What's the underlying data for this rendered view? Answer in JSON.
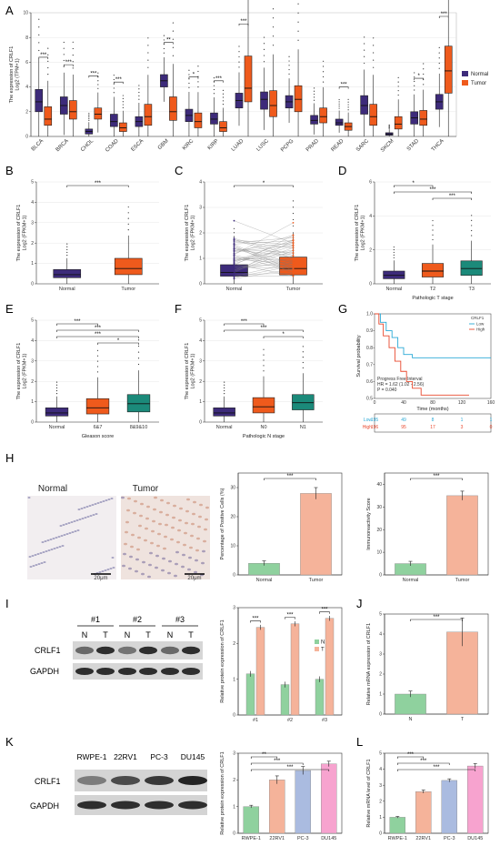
{
  "panels": {
    "A": "A",
    "B": "B",
    "C": "C",
    "D": "D",
    "E": "E",
    "F": "F",
    "G": "G",
    "H": "H",
    "I": "I",
    "J": "J",
    "K": "K",
    "L": "L"
  },
  "colors": {
    "normal": "#3d2b7a",
    "tumor": "#ef5a1c",
    "t3": "#1b8a7a",
    "green": "#8fd19e",
    "salmon": "#f5b39a",
    "blue": "#aabbe0",
    "pink": "#f7a3cf"
  },
  "chart_data": [
    {
      "panel": "A",
      "type": "box",
      "ylabel": "The expression of CRLF1",
      "ylabel2": "Log2 (TPM+1)",
      "ylim": [
        0,
        10
      ],
      "yticks": [
        "0",
        "2",
        "4",
        "6",
        "8",
        "10"
      ],
      "categories": [
        "BLCA",
        "BRCA",
        "CHOL",
        "COAD",
        "ESCA",
        "GBM",
        "KIRC",
        "KIRP",
        "LUAD",
        "LUSC",
        "PCPG",
        "PRAD",
        "READ",
        "SARC",
        "SKCM",
        "STAD",
        "THCA"
      ],
      "significance": [
        "***",
        "***",
        "***",
        "***",
        "",
        "**",
        "*",
        "***",
        "***",
        "",
        "",
        "",
        "***",
        "",
        "",
        "*",
        "***"
      ],
      "legend": [
        "Normal",
        "Tumor"
      ],
      "series": [
        {
          "name": "Normal",
          "box": [
            [
              2,
              2.8,
              3.8
            ],
            [
              1.8,
              2.5,
              3.2
            ],
            [
              0.2,
              0.4,
              0.6
            ],
            [
              0.8,
              1.2,
              1.8
            ],
            [
              0.8,
              1.2,
              1.6
            ],
            [
              4,
              4.5,
              5
            ],
            [
              1.2,
              1.7,
              2.2
            ],
            [
              1,
              1.4,
              1.9
            ],
            [
              2.3,
              2.9,
              3.5
            ],
            [
              2.2,
              3,
              3.6
            ],
            [
              2.3,
              2.8,
              3.3
            ],
            [
              1,
              1.3,
              1.7
            ],
            [
              0.9,
              1.1,
              1.4
            ],
            [
              1.8,
              2.5,
              3.3
            ],
            [
              0.1,
              0.2,
              0.3
            ],
            [
              1,
              1.5,
              2
            ],
            [
              2.2,
              2.8,
              3.4
            ]
          ]
        },
        {
          "name": "Tumor",
          "box": [
            [
              0.9,
              1.4,
              2.4
            ],
            [
              1.4,
              2,
              2.9
            ],
            [
              1.4,
              1.8,
              2.3
            ],
            [
              0.4,
              0.7,
              1.1
            ],
            [
              0.9,
              1.6,
              2.6
            ],
            [
              1.3,
              2,
              3.2
            ],
            [
              0.7,
              1.2,
              1.9
            ],
            [
              0.4,
              0.7,
              1.2
            ],
            [
              2.8,
              3.9,
              6.5
            ],
            [
              1.6,
              2.5,
              3.7
            ],
            [
              2,
              3,
              4.1
            ],
            [
              1.1,
              1.6,
              2.3
            ],
            [
              0.5,
              0.8,
              1.1
            ],
            [
              0.9,
              1.6,
              2.6
            ],
            [
              0.6,
              1,
              1.6
            ],
            [
              0.9,
              1.4,
              2.1
            ],
            [
              3.5,
              5.3,
              7.3
            ]
          ]
        }
      ]
    },
    {
      "panel": "B",
      "type": "box",
      "ylabel": "The expression of CRLF1",
      "ylabel2": "Log2 (FPKM+1)",
      "categories": [
        "Normal",
        "Tumor"
      ],
      "ylim": [
        0,
        5
      ],
      "yticks": [
        "0",
        "1",
        "2",
        "3",
        "4",
        "5"
      ],
      "significance": "***",
      "box": [
        [
          0.3,
          0.45,
          0.7
        ],
        [
          0.45,
          0.75,
          1.25
        ]
      ]
    },
    {
      "panel": "C",
      "type": "paired",
      "ylabel": "The expression of CRLF1",
      "ylabel2": "Log2 (FPKM+1)",
      "categories": [
        "Normal",
        "Tumor"
      ],
      "ylim": [
        0,
        4
      ],
      "yticks": [
        "0",
        "1",
        "2",
        "3",
        "4"
      ],
      "significance": "*",
      "box": [
        [
          0.3,
          0.45,
          0.75
        ],
        [
          0.35,
          0.6,
          1.05
        ]
      ]
    },
    {
      "panel": "D",
      "type": "box",
      "ylabel": "The expression of CRLF1",
      "ylabel2": "Log2 (FPKM+1)",
      "xlabel": "Pathologic T stage",
      "categories": [
        "Normal",
        "T2",
        "T3"
      ],
      "ylim": [
        0,
        6
      ],
      "yticks": [
        "0",
        "2",
        "4",
        "6"
      ],
      "significance": [
        "*",
        "***",
        "***"
      ],
      "box": [
        [
          0.3,
          0.5,
          0.75
        ],
        [
          0.4,
          0.75,
          1.2
        ],
        [
          0.5,
          0.9,
          1.35
        ]
      ]
    },
    {
      "panel": "E",
      "type": "box",
      "ylabel": "The expression of CRLF1",
      "ylabel2": "Log2 (FPKM+1)",
      "xlabel": "Gleason score",
      "categories": [
        "Normal",
        "6&7",
        "8&9&10"
      ],
      "ylim": [
        0,
        5
      ],
      "yticks": [
        "0",
        "1",
        "2",
        "3",
        "4",
        "5"
      ],
      "significance": [
        "***",
        "***",
        "***",
        "*"
      ],
      "box": [
        [
          0.3,
          0.45,
          0.7
        ],
        [
          0.4,
          0.7,
          1.15
        ],
        [
          0.5,
          0.9,
          1.35
        ]
      ]
    },
    {
      "panel": "F",
      "type": "box",
      "ylabel": "The expression of CRLF1",
      "ylabel2": "Log2 (FPKM+1)",
      "xlabel": "Pathologic N stage",
      "categories": [
        "Normal",
        "N0",
        "N1"
      ],
      "ylim": [
        0,
        5
      ],
      "yticks": [
        "0",
        "1",
        "2",
        "3",
        "4",
        "5"
      ],
      "significance": [
        "***",
        "***",
        "*"
      ],
      "box": [
        [
          0.3,
          0.45,
          0.7
        ],
        [
          0.45,
          0.75,
          1.2
        ],
        [
          0.6,
          0.95,
          1.35
        ]
      ]
    },
    {
      "panel": "G",
      "type": "survival",
      "ylabel": "Survival probability",
      "xlabel": "Time (months)",
      "xticks": [
        "0",
        "40",
        "80",
        "120",
        "160"
      ],
      "yticks": [
        "0.5",
        "0.6",
        "0.7",
        "0.8",
        "0.9",
        "1.0"
      ],
      "legend_title": "CRLF1",
      "legend": [
        "Low",
        "High"
      ],
      "annotation": [
        "Progress Free Interval",
        "HR = 1.62 (1.02 - 2.56)",
        "P = 0.040"
      ],
      "risk_table": {
        "Low": [
          "195",
          "49",
          "8",
          "1",
          "1"
        ],
        "High": [
          "196",
          "95",
          "17",
          "3",
          "0"
        ]
      }
    },
    {
      "panel": "H1",
      "type": "bar",
      "ylabel": "Percentage of Positive Cells (%)",
      "categories": [
        "Normal",
        "Tumor"
      ],
      "values": [
        4,
        28
      ],
      "errors": [
        0.8,
        2
      ],
      "ylim": [
        0,
        35
      ],
      "yticks": [
        "0",
        "10",
        "20",
        "30"
      ],
      "significance": "***"
    },
    {
      "panel": "H2",
      "type": "bar",
      "ylabel": "Immunoreactivity Score",
      "categories": [
        "Normal",
        "Tumor"
      ],
      "values": [
        5,
        35
      ],
      "errors": [
        1,
        2
      ],
      "ylim": [
        0,
        45
      ],
      "yticks": [
        "0",
        "10",
        "20",
        "30",
        "40"
      ],
      "significance": "***"
    },
    {
      "panel": "I",
      "type": "bar",
      "ylabel": "Relative protein expression of CRLF1",
      "categories": [
        "#1",
        "#2",
        "#3"
      ],
      "legend": [
        "N",
        "T"
      ],
      "ylim": [
        0,
        3
      ],
      "yticks": [
        "0",
        "1",
        "2",
        "3"
      ],
      "series": [
        {
          "name": "N",
          "values": [
            1.15,
            0.85,
            1.0
          ]
        },
        {
          "name": "T",
          "values": [
            2.45,
            2.55,
            2.7
          ]
        }
      ],
      "significance": [
        "***",
        "***",
        "***"
      ]
    },
    {
      "panel": "J",
      "type": "bar",
      "ylabel": "Relative mRNA expression of CRLF1",
      "categories": [
        "N",
        "T"
      ],
      "values": [
        1.0,
        4.1
      ],
      "errors": [
        0.15,
        0.7
      ],
      "ylim": [
        0,
        5
      ],
      "yticks": [
        "0",
        "1",
        "2",
        "3",
        "4",
        "5"
      ],
      "significance": "***"
    },
    {
      "panel": "K",
      "type": "bar",
      "ylabel": "Relative protein expression of CRLF1",
      "categories": [
        "RWPE-1",
        "22RV1",
        "PC-3",
        "DU145"
      ],
      "values": [
        1.0,
        2.0,
        2.35,
        2.6
      ],
      "errors": [
        0.05,
        0.15,
        0.15,
        0.1
      ],
      "ylim": [
        0,
        3
      ],
      "yticks": [
        "0",
        "1",
        "2",
        "3"
      ],
      "significance": [
        "**",
        "***",
        "***"
      ]
    },
    {
      "panel": "L",
      "type": "bar",
      "ylabel": "Relative mRNA level of CRLF1",
      "categories": [
        "RWPE-1",
        "22RV1",
        "PC-3",
        "DU145"
      ],
      "values": [
        1.0,
        2.6,
        3.3,
        4.2
      ],
      "errors": [
        0.05,
        0.1,
        0.1,
        0.15
      ],
      "ylim": [
        0,
        5
      ],
      "yticks": [
        "0",
        "1",
        "2",
        "3",
        "4",
        "5"
      ],
      "significance": [
        "***",
        "***",
        "***"
      ]
    }
  ],
  "ihc": {
    "normal_label": "Normal",
    "tumor_label": "Tumor",
    "scale": "20μm"
  },
  "blots": {
    "I": {
      "groups": [
        "#1",
        "#2",
        "#3"
      ],
      "lanes": [
        "N",
        "T",
        "N",
        "T",
        "N",
        "T"
      ],
      "rows": [
        "CRLF1",
        "GAPDH"
      ]
    },
    "K": {
      "lanes": [
        "RWPE-1",
        "22RV1",
        "PC-3",
        "DU145"
      ],
      "rows": [
        "CRLF1",
        "GAPDH"
      ]
    }
  }
}
